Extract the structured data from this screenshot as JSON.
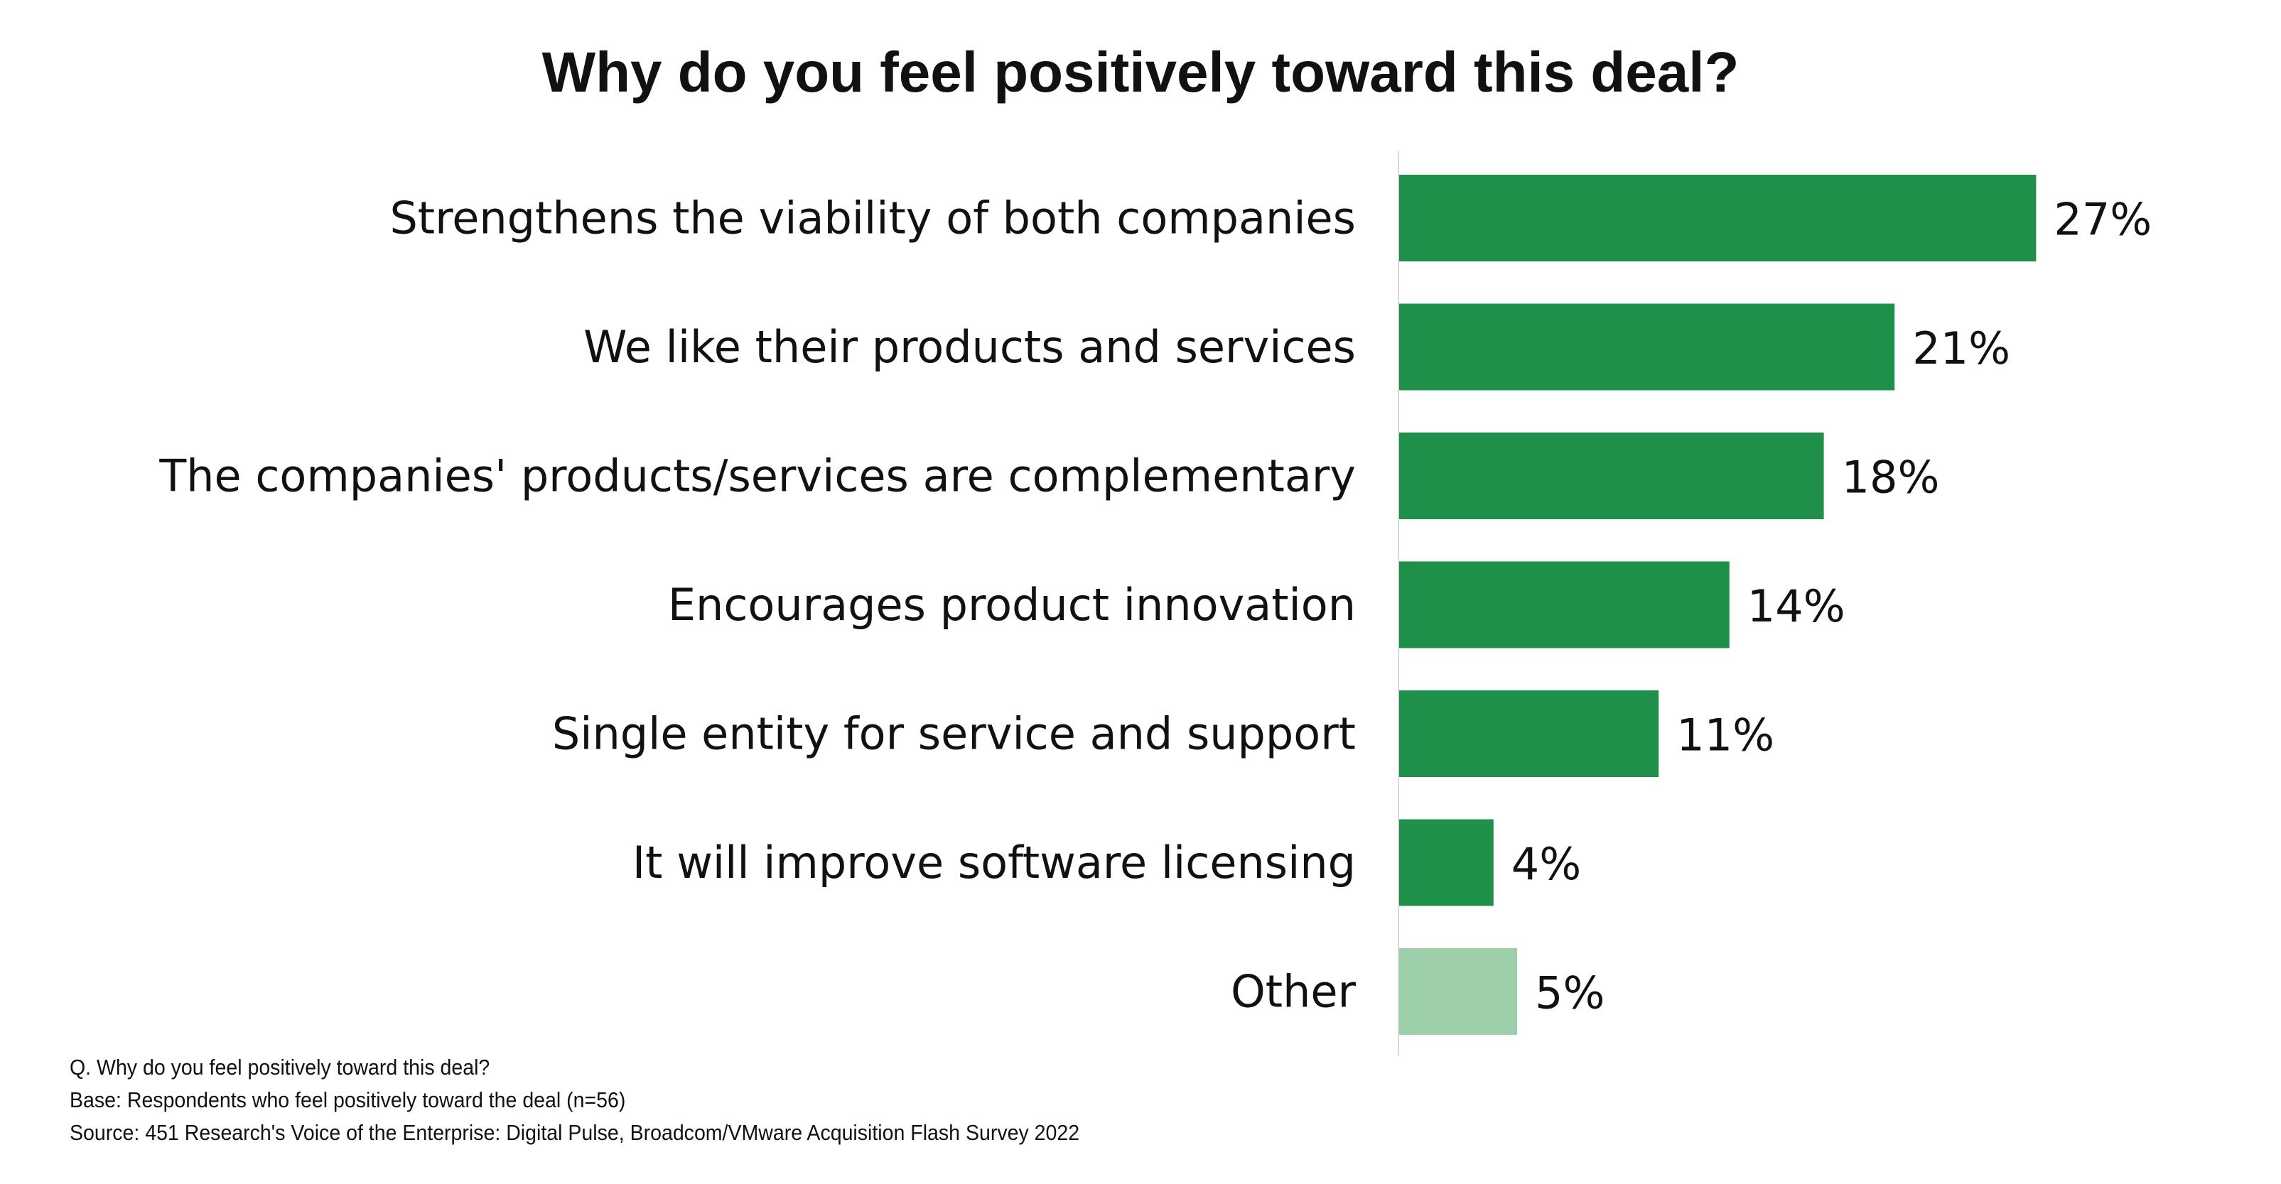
{
  "chart_data": {
    "type": "bar",
    "orientation": "horizontal",
    "title": "Why do you feel positively toward this deal?",
    "categories": [
      "Strengthens the viability of both companies",
      "We like their products and services",
      "The companies' products/services are complementary",
      "Encourages product innovation",
      "Single entity for service and support",
      "It will improve software licensing",
      "Other"
    ],
    "values": [
      27,
      21,
      18,
      14,
      11,
      4,
      5
    ],
    "value_labels": [
      "27%",
      "21%",
      "18%",
      "14%",
      "11%",
      "4%",
      "5%"
    ],
    "unit": "%",
    "xlim": [
      0,
      30
    ],
    "grid": false,
    "bar_colors": [
      "#1e9049",
      "#1e9049",
      "#1e9049",
      "#1e9049",
      "#1e9049",
      "#1e9049",
      "#9dcfaa"
    ],
    "axis_color": "#d9d9d9"
  },
  "footnotes": {
    "question": "Q. Why do you feel positively toward this deal?",
    "base": "Base: Respondents who feel positively toward the deal (n=56)",
    "source": "Source: 451 Research's Voice of the Enterprise: Digital Pulse, Broadcom/VMware Acquisition Flash Survey 2022"
  }
}
